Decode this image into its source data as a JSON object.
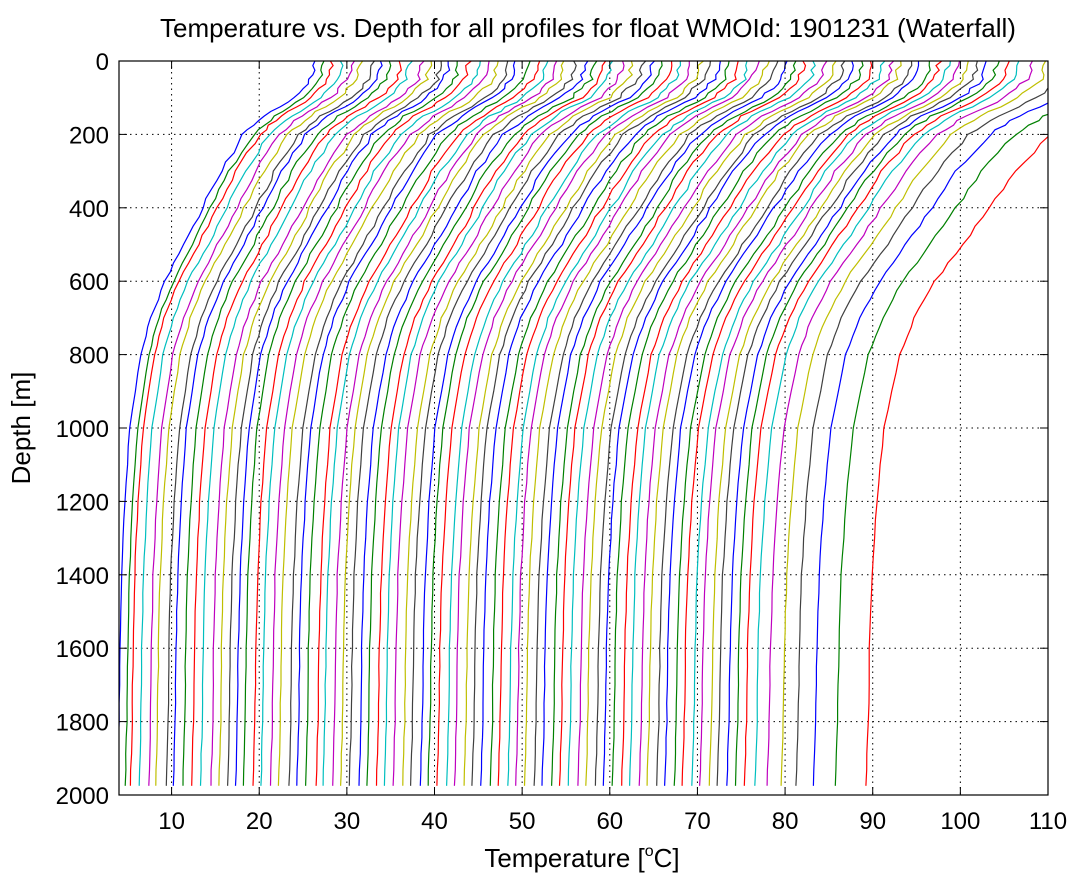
{
  "chart_data": {
    "type": "line",
    "title": "Temperature vs. Depth for all profiles for float WMOId: 1901231 (Waterfall)",
    "xlabel_prefix": "Temperature [",
    "xlabel_sup": "o",
    "xlabel_suffix": "C]",
    "ylabel": "Depth [m]",
    "xlim": [
      4,
      110
    ],
    "ylim": [
      0,
      2000
    ],
    "y_reversed": true,
    "grid": true,
    "grid_style": "dotted",
    "legend": "none",
    "x_ticks": [
      "10",
      "20",
      "30",
      "40",
      "50",
      "60",
      "70",
      "80",
      "90",
      "100",
      "110"
    ],
    "y_ticks": [
      "0",
      "200",
      "400",
      "600",
      "800",
      "1000",
      "1200",
      "1400",
      "1600",
      "1800",
      "2000"
    ],
    "colors": [
      "#0000ff",
      "#008000",
      "#ff0000",
      "#00bfbf",
      "#bf00bf",
      "#bfbf00",
      "#404040"
    ],
    "profile_count": 80,
    "waterfall_offset_per_profile": 1.0,
    "profile_shape": {
      "depth": [
        0,
        50,
        100,
        150,
        200,
        300,
        400,
        500,
        600,
        700,
        800,
        1000,
        1200,
        1400,
        1600,
        1800,
        1975
      ],
      "temperature_anomaly": [
        23.5,
        23.0,
        21.0,
        17.5,
        15.0,
        12.2,
        10.0,
        7.8,
        5.5,
        3.8,
        2.6,
        1.3,
        0.7,
        0.3,
        0.1,
        0.0,
        -0.2
      ]
    },
    "series": [
      {
        "x0": 4.0,
        "amp": 0.95
      },
      {
        "x0": 4.9,
        "amp": 0.96
      },
      {
        "x0": 5.5,
        "amp": 0.97
      },
      {
        "x0": 6.5,
        "amp": 0.98
      },
      {
        "x0": 7.6,
        "amp": 0.98
      },
      {
        "x0": 8.4,
        "amp": 0.99
      },
      {
        "x0": 9.6,
        "amp": 1.0
      },
      {
        "x0": 10.4,
        "amp": 1.0
      },
      {
        "x0": 11.5,
        "amp": 1.0
      },
      {
        "x0": 12.5,
        "amp": 1.01
      },
      {
        "x0": 13.5,
        "amp": 1.01
      },
      {
        "x0": 14.7,
        "amp": 1.02
      },
      {
        "x0": 15.6,
        "amp": 1.02
      },
      {
        "x0": 16.6,
        "amp": 1.03
      },
      {
        "x0": 17.5,
        "amp": 1.03
      },
      {
        "x0": 18.4,
        "amp": 1.04
      },
      {
        "x0": 19.5,
        "amp": 1.04
      },
      {
        "x0": 20.4,
        "amp": 1.05
      },
      {
        "x0": 21.5,
        "amp": 1.05
      },
      {
        "x0": 22.4,
        "amp": 1.06
      },
      {
        "x0": 23.6,
        "amp": 1.06
      },
      {
        "x0": 24.5,
        "amp": 1.06
      },
      {
        "x0": 25.5,
        "amp": 1.07
      },
      {
        "x0": 26.7,
        "amp": 1.07
      },
      {
        "x0": 27.5,
        "amp": 1.08
      },
      {
        "x0": 28.6,
        "amp": 1.08
      },
      {
        "x0": 29.5,
        "amp": 1.08
      },
      {
        "x0": 30.5,
        "amp": 1.09
      },
      {
        "x0": 31.6,
        "amp": 1.09
      },
      {
        "x0": 32.5,
        "amp": 1.1
      },
      {
        "x0": 33.6,
        "amp": 1.1
      },
      {
        "x0": 34.5,
        "amp": 1.1
      },
      {
        "x0": 35.5,
        "amp": 1.11
      },
      {
        "x0": 36.6,
        "amp": 1.11
      },
      {
        "x0": 37.5,
        "amp": 1.12
      },
      {
        "x0": 38.6,
        "amp": 1.12
      },
      {
        "x0": 39.5,
        "amp": 1.12
      },
      {
        "x0": 40.5,
        "amp": 1.13
      },
      {
        "x0": 41.6,
        "amp": 1.13
      },
      {
        "x0": 42.5,
        "amp": 1.14
      },
      {
        "x0": 43.6,
        "amp": 1.14
      },
      {
        "x0": 44.5,
        "amp": 1.14
      },
      {
        "x0": 45.5,
        "amp": 1.15
      },
      {
        "x0": 46.6,
        "amp": 1.15
      },
      {
        "x0": 47.5,
        "amp": 1.16
      },
      {
        "x0": 48.6,
        "amp": 1.16
      },
      {
        "x0": 49.5,
        "amp": 1.16
      },
      {
        "x0": 50.5,
        "amp": 1.17
      },
      {
        "x0": 51.6,
        "amp": 1.17
      },
      {
        "x0": 52.5,
        "amp": 1.18
      },
      {
        "x0": 53.6,
        "amp": 1.18
      },
      {
        "x0": 54.5,
        "amp": 1.18
      },
      {
        "x0": 55.5,
        "amp": 1.19
      },
      {
        "x0": 56.6,
        "amp": 1.19
      },
      {
        "x0": 57.5,
        "amp": 1.2
      },
      {
        "x0": 58.6,
        "amp": 1.2
      },
      {
        "x0": 59.5,
        "amp": 1.2
      },
      {
        "x0": 60.5,
        "amp": 1.21
      },
      {
        "x0": 61.6,
        "amp": 1.21
      },
      {
        "x0": 62.5,
        "amp": 1.22
      },
      {
        "x0": 63.6,
        "amp": 1.22
      },
      {
        "x0": 64.5,
        "amp": 1.22
      },
      {
        "x0": 65.6,
        "amp": 1.23
      },
      {
        "x0": 66.5,
        "amp": 1.23
      },
      {
        "x0": 67.6,
        "amp": 1.24
      },
      {
        "x0": 68.5,
        "amp": 1.24
      },
      {
        "x0": 69.6,
        "amp": 1.24
      },
      {
        "x0": 70.5,
        "amp": 1.25
      },
      {
        "x0": 71.6,
        "amp": 1.25
      },
      {
        "x0": 72.5,
        "amp": 1.26
      },
      {
        "x0": 73.6,
        "amp": 1.26
      },
      {
        "x0": 74.6,
        "amp": 1.26
      },
      {
        "x0": 75.6,
        "amp": 1.27
      },
      {
        "x0": 76.8,
        "amp": 1.27
      },
      {
        "x0": 78.2,
        "amp": 1.28
      },
      {
        "x0": 79.8,
        "amp": 1.28
      },
      {
        "x0": 81.5,
        "amp": 1.3
      },
      {
        "x0": 83.5,
        "amp": 1.32
      },
      {
        "x0": 86.0,
        "amp": 1.35
      },
      {
        "x0": 89.5,
        "amp": 1.38
      }
    ]
  }
}
